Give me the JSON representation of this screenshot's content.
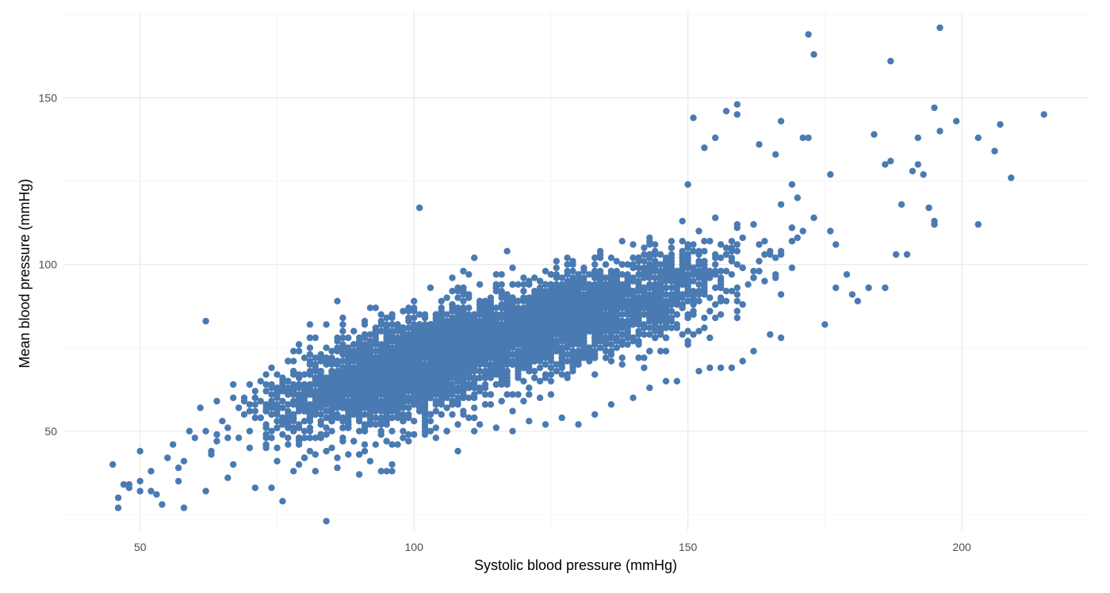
{
  "chart_data": {
    "type": "scatter",
    "title": "",
    "xlabel": "Systolic blood pressure (mmHg)",
    "ylabel": "Mean blood pressure (mmHg)",
    "xlim": [
      36,
      223
    ],
    "ylim": [
      20,
      176
    ],
    "x_ticks": [
      50,
      100,
      150,
      200
    ],
    "y_ticks": [
      50,
      100,
      150
    ],
    "x_minor_ticks": [
      75,
      125,
      175
    ],
    "y_minor_ticks": [
      25,
      75,
      125,
      175
    ],
    "grid": true,
    "legend": "none",
    "point_color": "#4a7ab2",
    "trend": {
      "intercept": 23,
      "slope": 0.47,
      "spread_sd": 7
    },
    "main_cloud": {
      "n": 5200,
      "components": [
        {
          "weight": 0.55,
          "x_mean": 100,
          "x_sd": 12
        },
        {
          "weight": 0.45,
          "x_mean": 130,
          "x_sd": 14
        }
      ]
    },
    "series": [
      {
        "name": "",
        "points": [
          [
            45,
            40
          ],
          [
            46,
            30
          ],
          [
            46,
            27
          ],
          [
            47,
            34
          ],
          [
            48,
            33
          ],
          [
            48,
            34
          ],
          [
            50,
            44
          ],
          [
            50,
            35
          ],
          [
            50,
            32
          ],
          [
            52,
            38
          ],
          [
            52,
            32
          ],
          [
            53,
            31
          ],
          [
            54,
            28
          ],
          [
            55,
            42
          ],
          [
            56,
            46
          ],
          [
            57,
            39
          ],
          [
            57,
            35
          ],
          [
            58,
            27
          ],
          [
            58,
            41
          ],
          [
            59,
            50
          ],
          [
            60,
            48
          ],
          [
            61,
            57
          ],
          [
            62,
            32
          ],
          [
            62,
            83
          ],
          [
            63,
            44
          ],
          [
            64,
            47
          ],
          [
            65,
            53
          ],
          [
            66,
            36
          ],
          [
            67,
            40
          ],
          [
            68,
            48
          ],
          [
            70,
            45
          ],
          [
            71,
            33
          ],
          [
            73,
            48
          ],
          [
            74,
            33
          ],
          [
            75,
            41
          ],
          [
            76,
            29
          ],
          [
            78,
            38
          ],
          [
            80,
            42
          ],
          [
            84,
            23
          ],
          [
            85,
            45
          ],
          [
            86,
            39
          ],
          [
            87,
            47
          ],
          [
            88,
            43
          ],
          [
            90,
            37
          ],
          [
            91,
            44
          ],
          [
            92,
            41
          ],
          [
            93,
            46
          ],
          [
            94,
            38
          ],
          [
            95,
            38
          ],
          [
            96,
            38
          ],
          [
            97,
            46
          ],
          [
            98,
            48
          ],
          [
            99,
            47
          ],
          [
            101,
            117
          ],
          [
            102,
            49
          ],
          [
            103,
            50
          ],
          [
            104,
            48
          ],
          [
            106,
            50
          ],
          [
            108,
            52
          ],
          [
            110,
            54
          ],
          [
            112,
            52
          ],
          [
            115,
            51
          ],
          [
            118,
            50
          ],
          [
            121,
            53
          ],
          [
            124,
            52
          ],
          [
            127,
            54
          ],
          [
            130,
            52
          ],
          [
            133,
            55
          ],
          [
            136,
            58
          ],
          [
            140,
            60
          ],
          [
            143,
            63
          ],
          [
            146,
            65
          ],
          [
            148,
            65
          ],
          [
            150,
            124
          ],
          [
            151,
            144
          ],
          [
            152,
            68
          ],
          [
            153,
            135
          ],
          [
            154,
            69
          ],
          [
            155,
            138
          ],
          [
            156,
            69
          ],
          [
            157,
            146
          ],
          [
            158,
            69
          ],
          [
            159,
            148
          ],
          [
            159,
            145
          ],
          [
            160,
            71
          ],
          [
            162,
            74
          ],
          [
            163,
            136
          ],
          [
            165,
            79
          ],
          [
            166,
            133
          ],
          [
            167,
            143
          ],
          [
            167,
            78
          ],
          [
            169,
            124
          ],
          [
            170,
            120
          ],
          [
            171,
            138
          ],
          [
            172,
            169
          ],
          [
            172,
            138
          ],
          [
            173,
            163
          ],
          [
            175,
            82
          ],
          [
            176,
            127
          ],
          [
            177,
            93
          ],
          [
            179,
            97
          ],
          [
            180,
            91
          ],
          [
            181,
            89
          ],
          [
            183,
            93
          ],
          [
            184,
            139
          ],
          [
            186,
            93
          ],
          [
            186,
            130
          ],
          [
            187,
            161
          ],
          [
            187,
            131
          ],
          [
            188,
            103
          ],
          [
            189,
            118
          ],
          [
            190,
            103
          ],
          [
            191,
            128
          ],
          [
            192,
            138
          ],
          [
            192,
            130
          ],
          [
            193,
            127
          ],
          [
            194,
            117
          ],
          [
            195,
            147
          ],
          [
            195,
            113
          ],
          [
            195,
            112
          ],
          [
            196,
            171
          ],
          [
            196,
            140
          ],
          [
            199,
            143
          ],
          [
            203,
            138
          ],
          [
            203,
            112
          ],
          [
            206,
            134
          ],
          [
            207,
            142
          ],
          [
            209,
            126
          ],
          [
            215,
            145
          ]
        ]
      }
    ]
  }
}
